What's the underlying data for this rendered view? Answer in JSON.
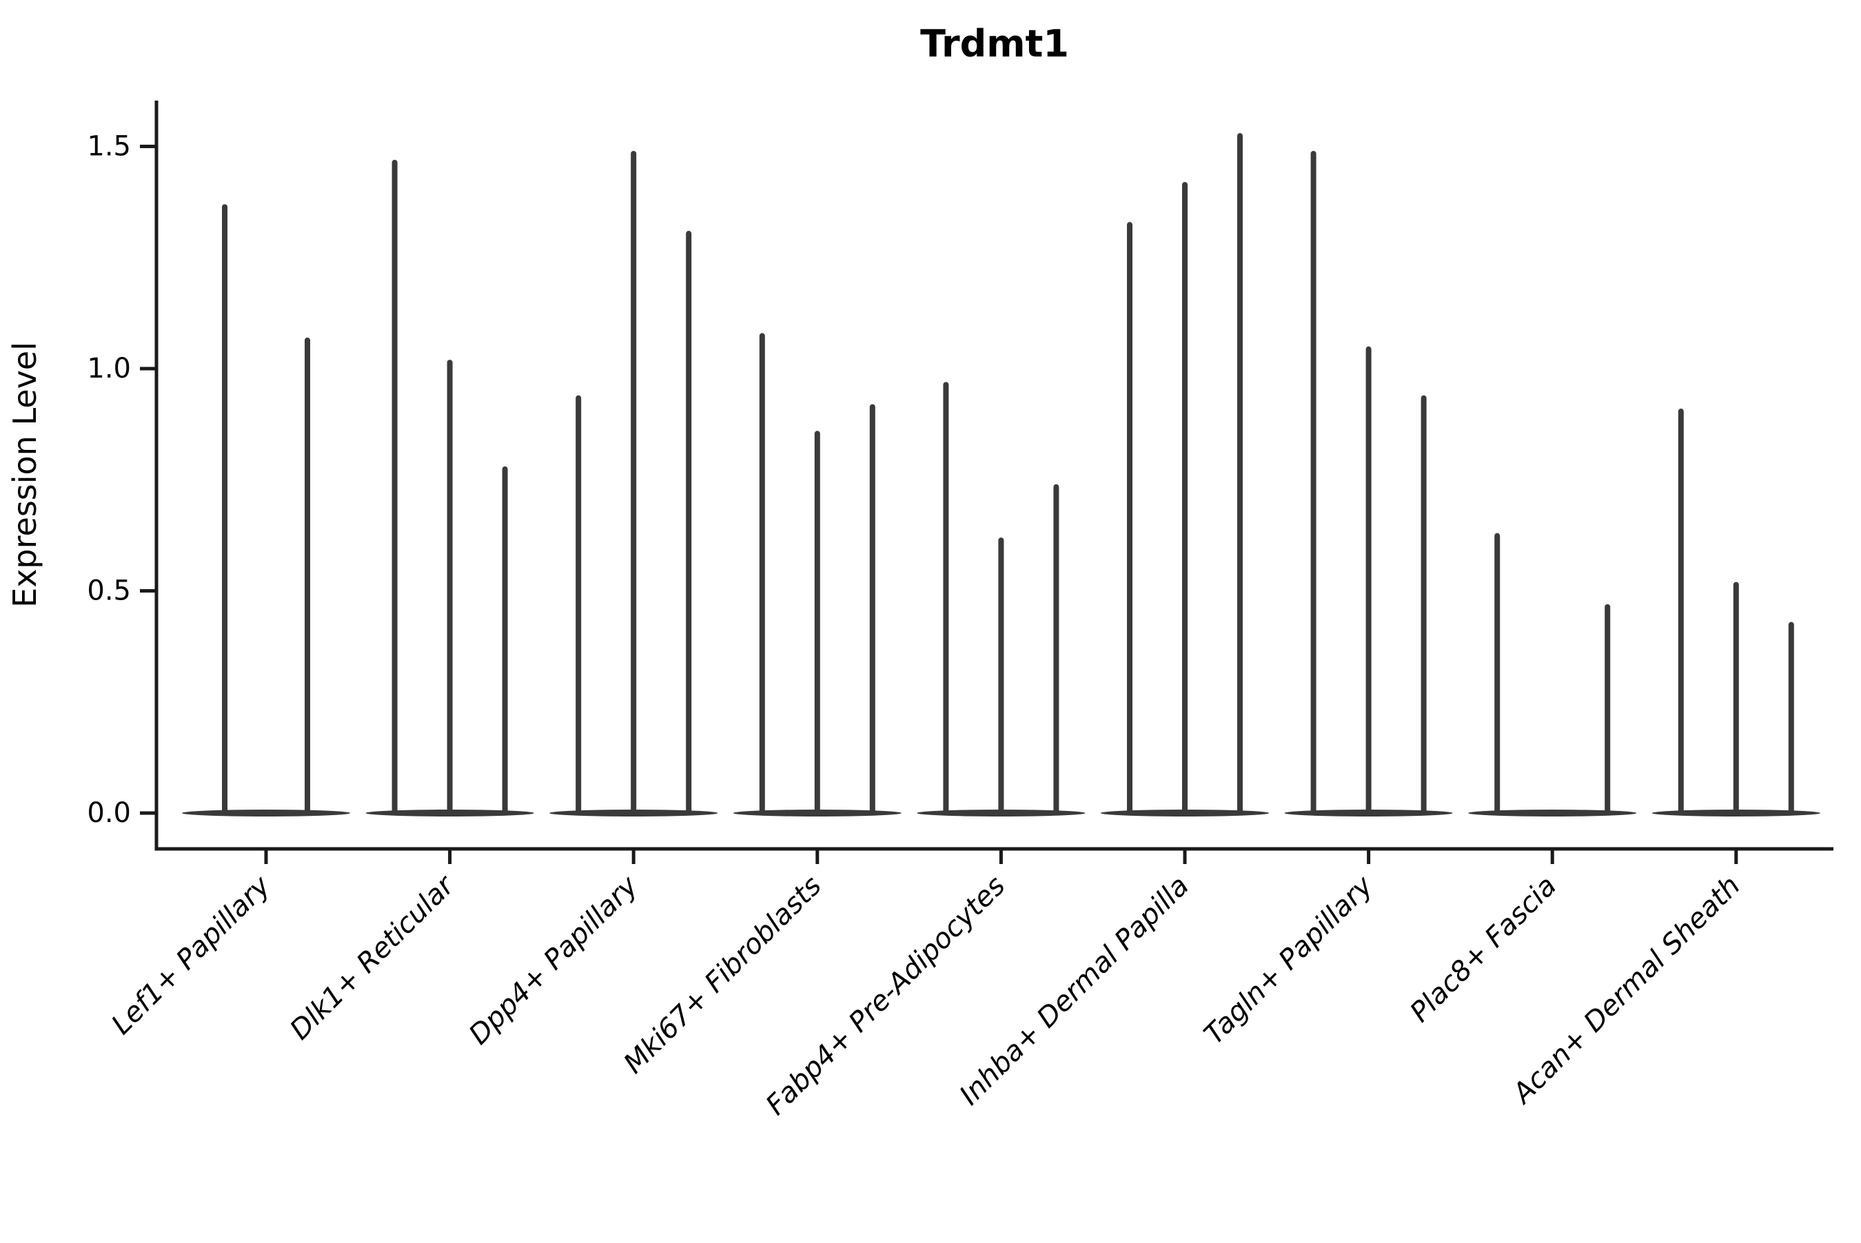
{
  "chart_data": {
    "type": "violin",
    "title": "Trdmt1",
    "ylabel": "Expression Level",
    "xlabel": "",
    "ylim": [
      -0.08,
      1.61
    ],
    "grid": false,
    "legend": null,
    "yticks": [
      {
        "label": "0.0",
        "value": 0.0
      },
      {
        "label": "0.5",
        "value": 0.5
      },
      {
        "label": "1.0",
        "value": 1.0
      },
      {
        "label": "1.5",
        "value": 1.5
      }
    ],
    "categories": [
      "Lef1+ Papillary",
      "Dlk1+ Reticular",
      "Dpp4+ Papillary",
      "Mki67+ Fibroblasts",
      "Fabp4+ Pre-Adipocytes",
      "Inhba+ Dermal Papilla",
      "Tagln+ Papillary",
      "Plac8+ Fascia",
      "Acan+ Dermal Sheath"
    ],
    "groups": [
      {
        "label": "Lef1+ Papillary",
        "slots": 2,
        "maxes": [
          1.37,
          1.07
        ]
      },
      {
        "label": "Dlk1+ Reticular",
        "slots": 3,
        "maxes": [
          1.47,
          1.02,
          0.78
        ]
      },
      {
        "label": "Dpp4+ Papillary",
        "slots": 3,
        "maxes": [
          0.94,
          1.49,
          1.31
        ]
      },
      {
        "label": "Mki67+ Fibroblasts",
        "slots": 3,
        "maxes": [
          1.08,
          0.86,
          0.92
        ]
      },
      {
        "label": "Fabp4+ Pre-Adipocytes",
        "slots": 3,
        "maxes": [
          0.97,
          0.62,
          0.74
        ]
      },
      {
        "label": "Inhba+ Dermal Papilla",
        "slots": 3,
        "maxes": [
          1.33,
          1.42,
          1.53
        ]
      },
      {
        "label": "Tagln+ Papillary",
        "slots": 3,
        "maxes": [
          1.49,
          1.05,
          0.94
        ]
      },
      {
        "label": "Plac8+ Fascia",
        "slots": 3,
        "maxes": [
          0.63,
          null,
          0.47
        ]
      },
      {
        "label": "Acan+ Dermal Sheath",
        "slots": 3,
        "maxes": [
          0.91,
          0.52,
          0.43
        ]
      }
    ],
    "colors": {
      "violin": "#3a3a3a",
      "axis": "#1a1a1a",
      "text": "#000000",
      "background": "#ffffff"
    }
  }
}
